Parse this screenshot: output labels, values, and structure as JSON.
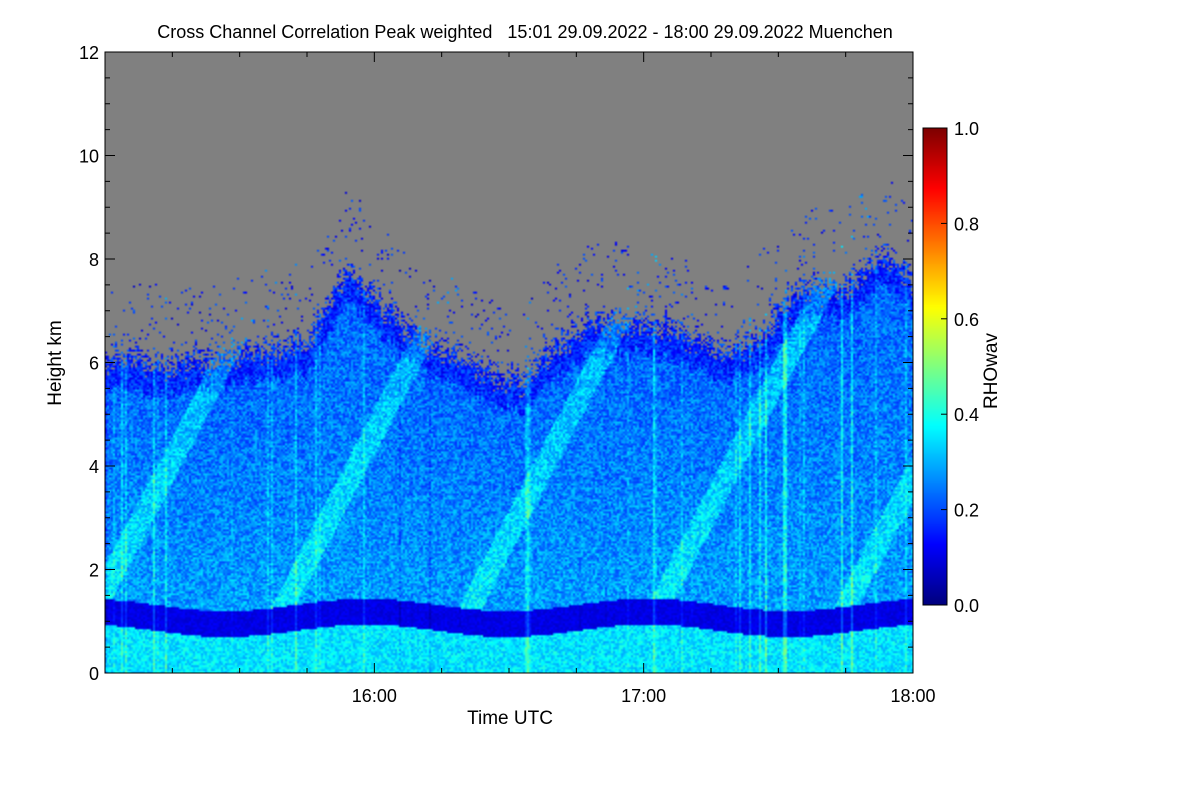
{
  "chart_data": {
    "type": "heatmap",
    "title": "Cross Channel Correlation Peak weighted   15:01 29.09.2022 - 18:00 29.09.2022 Muenchen",
    "xlabel": "Time UTC",
    "ylabel": "Height km",
    "colorbar_label": "RHOwav",
    "x_range_hours": [
      15.0,
      18.0
    ],
    "x_ticks": [
      {
        "value": 16.0,
        "label": "16:00"
      },
      {
        "value": 17.0,
        "label": "17:00"
      },
      {
        "value": 18.0,
        "label": "18:00"
      }
    ],
    "ylim": [
      0,
      12
    ],
    "y_ticks": [
      {
        "value": 0,
        "label": "0"
      },
      {
        "value": 2,
        "label": "2"
      },
      {
        "value": 4,
        "label": "4"
      },
      {
        "value": 6,
        "label": "6"
      },
      {
        "value": 8,
        "label": "8"
      },
      {
        "value": 10,
        "label": "10"
      },
      {
        "value": 12,
        "label": "12"
      }
    ],
    "colorbar_range": [
      0.0,
      1.0
    ],
    "colorbar_ticks": [
      {
        "value": 0.0,
        "label": "0.0"
      },
      {
        "value": 0.2,
        "label": "0.2"
      },
      {
        "value": 0.4,
        "label": "0.4"
      },
      {
        "value": 0.6,
        "label": "0.6"
      },
      {
        "value": 0.8,
        "label": "0.8"
      },
      {
        "value": 1.0,
        "label": "1.0"
      }
    ],
    "no_data_color": "#808080",
    "signal_top_km": [
      [
        15.0,
        6.1
      ],
      [
        15.25,
        6.0
      ],
      [
        15.5,
        6.2
      ],
      [
        15.75,
        6.4
      ],
      [
        15.9,
        7.8
      ],
      [
        16.05,
        7.0
      ],
      [
        16.2,
        6.4
      ],
      [
        16.4,
        5.9
      ],
      [
        16.55,
        5.6
      ],
      [
        16.65,
        6.2
      ],
      [
        16.8,
        6.8
      ],
      [
        17.0,
        6.8
      ],
      [
        17.15,
        6.6
      ],
      [
        17.3,
        6.2
      ],
      [
        17.45,
        6.6
      ],
      [
        17.6,
        7.5
      ],
      [
        17.75,
        7.4
      ],
      [
        17.9,
        8.1
      ],
      [
        18.0,
        7.7
      ]
    ],
    "low_correlation_band_km": [
      0.8,
      1.3
    ],
    "mean_rhowav_boundary_layer": 0.35,
    "mean_rhowav_free_troposphere": 0.22,
    "mean_rhowav_low_band": 0.1
  }
}
